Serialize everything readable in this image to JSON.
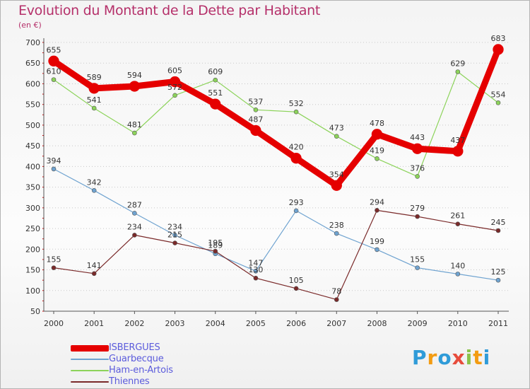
{
  "header": {
    "title": "Evolution du Montant de la Dette par Habitant",
    "subtitle": "(en €)"
  },
  "logo": {
    "letters": [
      {
        "char": "P",
        "color": "#2f9bd8"
      },
      {
        "char": "r",
        "color": "#f39c12"
      },
      {
        "char": "o",
        "color": "#2f9bd8"
      },
      {
        "char": "x",
        "color": "#e74c3c"
      },
      {
        "char": "i",
        "color": "#8bc34a"
      },
      {
        "char": "t",
        "color": "#f39c12"
      },
      {
        "char": "i",
        "color": "#2f9bd8"
      }
    ]
  },
  "chart_data": {
    "type": "line",
    "title": "Evolution du Montant de la Dette par Habitant",
    "subtitle": "(en €)",
    "xlabel": "",
    "ylabel": "",
    "x": [
      "2000",
      "2001",
      "2002",
      "2003",
      "2004",
      "2005",
      "2006",
      "2007",
      "2008",
      "2009",
      "2010",
      "2011"
    ],
    "ylim": [
      50,
      700
    ],
    "yticks": [
      50,
      100,
      150,
      200,
      250,
      300,
      350,
      400,
      450,
      500,
      550,
      600,
      650,
      700
    ],
    "grid": "horizontal",
    "legend_position": "bottom-left",
    "series": [
      {
        "name": "Ham-en-Artois",
        "color": "#8cd35a",
        "width": 1.2,
        "values": [
          610,
          541,
          481,
          572,
          609,
          537,
          532,
          473,
          419,
          376,
          629,
          554
        ]
      },
      {
        "name": "Guarbecque",
        "color": "#6fa3d0",
        "width": 1.2,
        "values": [
          394,
          342,
          287,
          234,
          189,
          147,
          293,
          238,
          199,
          155,
          140,
          125
        ]
      },
      {
        "name": "Thiennes",
        "color": "#7a2a2a",
        "width": 1.2,
        "values": [
          155,
          141,
          234,
          215,
          195,
          130,
          105,
          78,
          294,
          279,
          261,
          245
        ]
      },
      {
        "name": "ISBERGUES",
        "color": "#e50000",
        "width": 9,
        "values": [
          655,
          589,
          594,
          605,
          551,
          487,
          420,
          354,
          478,
          443,
          437,
          683
        ]
      }
    ],
    "legend_order": [
      "ISBERGUES",
      "Guarbecque",
      "Ham-en-Artois",
      "Thiennes"
    ]
  }
}
